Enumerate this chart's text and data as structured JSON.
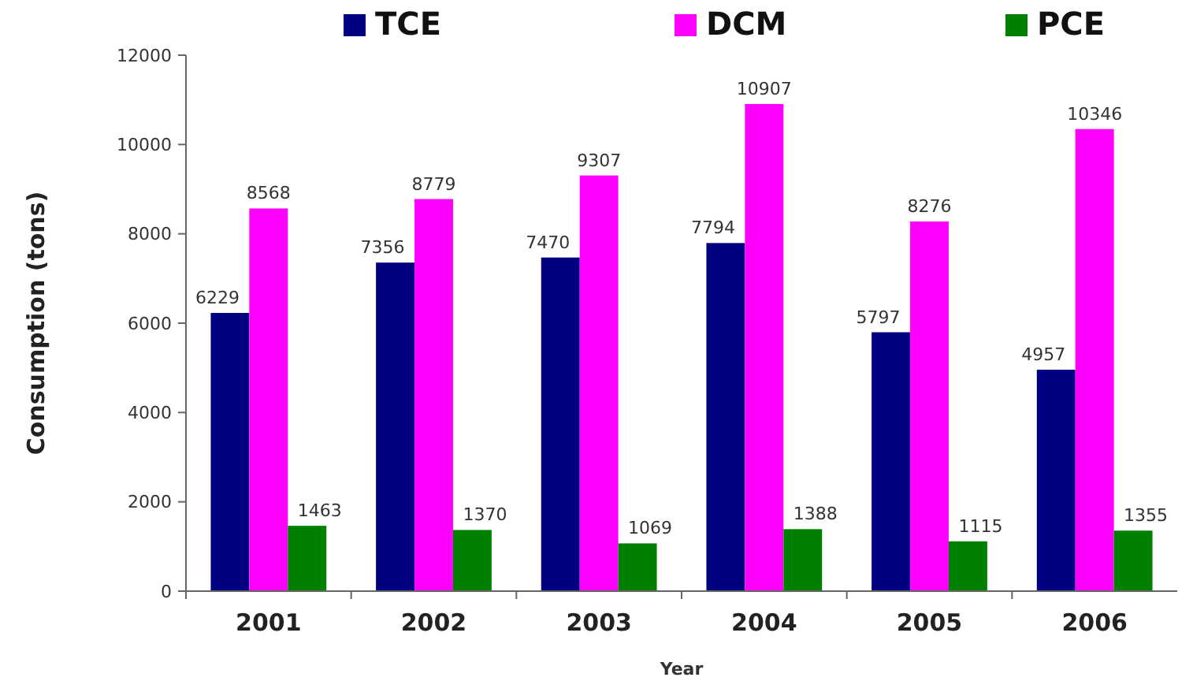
{
  "chart_data": {
    "type": "bar",
    "xlabel": "Year",
    "ylabel": "Consumption (tons)",
    "categories": [
      "2001",
      "2002",
      "2003",
      "2004",
      "2005",
      "2006"
    ],
    "series": [
      {
        "name": "TCE",
        "color": "#000080",
        "values": [
          6229,
          7356,
          7470,
          7794,
          5797,
          4957
        ]
      },
      {
        "name": "DCM",
        "color": "#ff00ff",
        "values": [
          8568,
          8779,
          9307,
          10907,
          8276,
          10346
        ]
      },
      {
        "name": "PCE",
        "color": "#008000",
        "values": [
          1463,
          1370,
          1069,
          1388,
          1115,
          1355
        ]
      }
    ],
    "ylim": [
      0,
      12000
    ],
    "yticks": [
      0,
      2000,
      4000,
      6000,
      8000,
      10000,
      12000
    ],
    "grid": false,
    "legend": "top",
    "data_labels": true
  }
}
